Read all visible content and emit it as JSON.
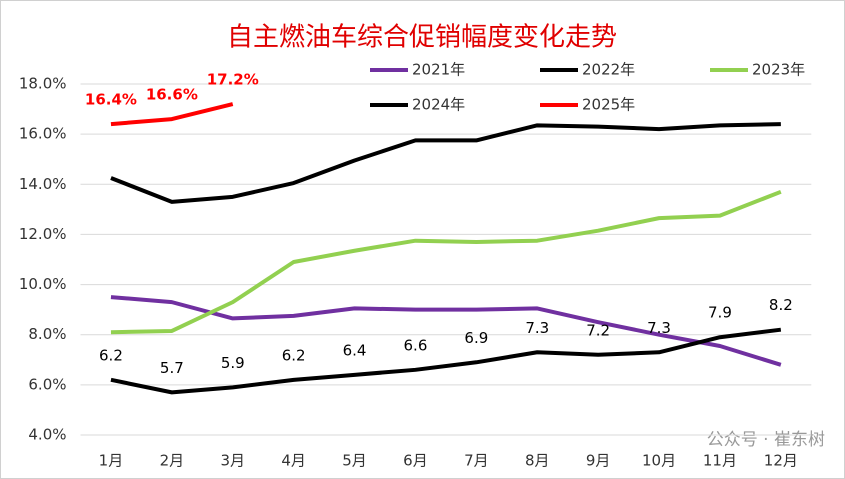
{
  "chart_data": {
    "type": "line",
    "title": "自主燃油车综合促销幅度变化走势",
    "watermark": "公众号 · 崔东树",
    "categories": [
      "1月",
      "2月",
      "3月",
      "4月",
      "5月",
      "6月",
      "7月",
      "8月",
      "9月",
      "10月",
      "11月",
      "12月"
    ],
    "series": [
      {
        "name": "2021年",
        "color": "#7030a0",
        "values": [
          9.5,
          9.3,
          8.65,
          8.75,
          9.05,
          9.0,
          9.0,
          9.05,
          8.5,
          8.0,
          7.55,
          6.8
        ]
      },
      {
        "name": "2022年",
        "color": "#000000",
        "data_labels": true,
        "values": [
          6.2,
          5.7,
          5.9,
          6.2,
          6.4,
          6.6,
          6.9,
          7.3,
          7.2,
          7.3,
          7.9,
          8.2
        ]
      },
      {
        "name": "2023年",
        "color": "#92d050",
        "values": [
          8.1,
          8.15,
          9.3,
          10.9,
          11.35,
          11.75,
          11.7,
          11.75,
          12.15,
          12.65,
          12.75,
          13.7
        ]
      },
      {
        "name": "2024年",
        "color": "#000000",
        "values": [
          14.25,
          13.3,
          13.5,
          14.05,
          14.95,
          15.75,
          15.75,
          16.35,
          16.3,
          16.2,
          16.35,
          16.4
        ]
      },
      {
        "name": "2025年",
        "color": "#ff0000",
        "data_labels": true,
        "values": [
          16.4,
          16.6,
          17.2,
          null,
          null,
          null,
          null,
          null,
          null,
          null,
          null,
          null
        ],
        "value_labels": [
          "16.4%",
          "16.6%",
          "17.2%",
          null,
          null,
          null,
          null,
          null,
          null,
          null,
          null,
          null
        ]
      }
    ],
    "ylim": [
      4,
      18
    ],
    "yticks": [
      {
        "value": 4,
        "label": "4.0%"
      },
      {
        "value": 6,
        "label": "6.0%"
      },
      {
        "value": 8,
        "label": "8.0%"
      },
      {
        "value": 10,
        "label": "10.0%"
      },
      {
        "value": 12,
        "label": "12.0%"
      },
      {
        "value": 14,
        "label": "14.0%"
      },
      {
        "value": 16,
        "label": "16.0%"
      },
      {
        "value": 18,
        "label": "18.0%"
      }
    ],
    "grid": true
  }
}
